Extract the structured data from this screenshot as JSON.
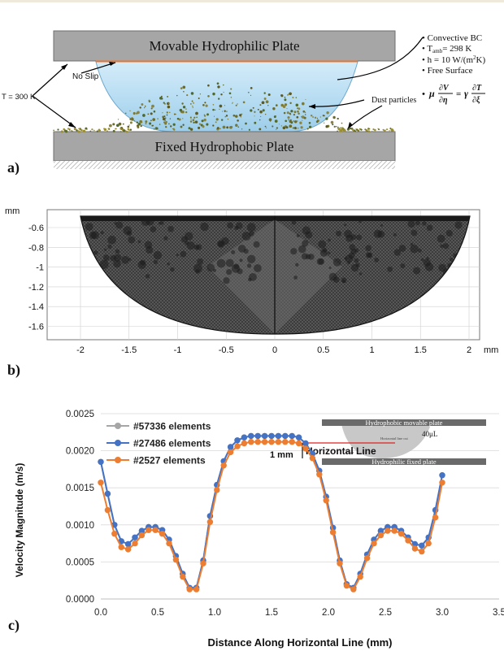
{
  "panel_a": {
    "label": "a)",
    "top_plate": "Movable Hydrophilic Plate",
    "bottom_plate": "Fixed Hydrophobic Plate",
    "no_slip": "No Slip",
    "temperature": "T = 300 K",
    "dust": "Dust particles",
    "bc": {
      "line1": "Convective BC",
      "line2_base": "T",
      "line2_sub": "amb",
      "line2_rest": "= 298 K",
      "line3_a": "h = 10 W/(m",
      "line3_sup": "2",
      "line3_b": "K)",
      "line4": "Free Surface",
      "eq": {
        "mu": "μ",
        "dv": "∂V",
        "deta": "∂η",
        "eq": "=",
        "gamma": "γ",
        "dT": "∂T",
        "dxi": "∂ξ"
      }
    }
  },
  "panel_b": {
    "label": "b)",
    "unit_y": "mm",
    "unit_x": "mm",
    "y_ticks": [
      "-0.6",
      "-0.8",
      "-1",
      "-1.2",
      "-1.4",
      "-1.6"
    ],
    "x_ticks": [
      "-2",
      "-1.5",
      "-1",
      "-0.5",
      "0",
      "0.5",
      "1",
      "1.5",
      "2"
    ]
  },
  "panel_c": {
    "label": "c)",
    "inset": {
      "top": "Hydrophobic movable plate",
      "bottom": "Hydrophilic fixed plate",
      "volume": "40μL",
      "cut": "Horizontal line cut",
      "onemm": "1 mm"
    },
    "annot_1mm": "1 mm",
    "annot_line": "Horizontal Line"
  },
  "chart_data": {
    "type": "line",
    "xlabel": "Distance Along Horizontal Line (mm)",
    "ylabel": "Velocity Magnitude (m/s)",
    "xlim": [
      0,
      3.5
    ],
    "ylim": [
      0,
      0.0025
    ],
    "x_ticks": [
      "0.0",
      "0.5",
      "1.0",
      "1.5",
      "2.0",
      "2.5",
      "3.0",
      "3.5"
    ],
    "y_ticks": [
      "0.0000",
      "0.0005",
      "0.0010",
      "0.0015",
      "0.0020",
      "0.0025"
    ],
    "legend_position": "top-left",
    "x": [
      0.0,
      0.06,
      0.12,
      0.18,
      0.24,
      0.3,
      0.36,
      0.42,
      0.48,
      0.54,
      0.6,
      0.66,
      0.72,
      0.78,
      0.84,
      0.9,
      0.96,
      1.02,
      1.08,
      1.14,
      1.2,
      1.26,
      1.32,
      1.38,
      1.44,
      1.5,
      1.56,
      1.62,
      1.68,
      1.74,
      1.8,
      1.86,
      1.92,
      1.98,
      2.04,
      2.1,
      2.16,
      2.22,
      2.28,
      2.34,
      2.4,
      2.46,
      2.52,
      2.58,
      2.64,
      2.7,
      2.76,
      2.82,
      2.88,
      2.94,
      3.0
    ],
    "series": [
      {
        "name": "#57336 elements",
        "color": "#a6a6a6",
        "values": [
          0.00185,
          0.00142,
          0.001,
          0.00078,
          0.00074,
          0.00083,
          0.00092,
          0.00097,
          0.00097,
          0.00093,
          0.0008,
          0.00058,
          0.00034,
          0.00015,
          0.00015,
          0.00052,
          0.00112,
          0.00154,
          0.00186,
          0.00205,
          0.00214,
          0.00218,
          0.0022,
          0.0022,
          0.0022,
          0.0022,
          0.0022,
          0.0022,
          0.0022,
          0.00218,
          0.0021,
          0.00196,
          0.00173,
          0.00138,
          0.00096,
          0.00052,
          0.0002,
          0.00015,
          0.00034,
          0.0006,
          0.0008,
          0.00092,
          0.00097,
          0.00097,
          0.00092,
          0.00083,
          0.00074,
          0.00072,
          0.00083,
          0.0012,
          0.00167
        ]
      },
      {
        "name": "#27486 elements",
        "color": "#4472c4",
        "values": [
          0.00185,
          0.00142,
          0.001,
          0.00078,
          0.00074,
          0.00083,
          0.00092,
          0.00097,
          0.00097,
          0.00093,
          0.0008,
          0.00058,
          0.00034,
          0.00015,
          0.00015,
          0.00052,
          0.00112,
          0.00154,
          0.00186,
          0.00205,
          0.00214,
          0.00218,
          0.0022,
          0.0022,
          0.0022,
          0.0022,
          0.0022,
          0.0022,
          0.0022,
          0.00218,
          0.0021,
          0.00196,
          0.00173,
          0.00138,
          0.00096,
          0.00052,
          0.0002,
          0.00015,
          0.00034,
          0.0006,
          0.0008,
          0.00092,
          0.00097,
          0.00097,
          0.00092,
          0.00083,
          0.00074,
          0.00072,
          0.00083,
          0.0012,
          0.00167
        ]
      },
      {
        "name": "#2527 elements",
        "color": "#ed7d31",
        "values": [
          0.00157,
          0.0012,
          0.00088,
          0.0007,
          0.00067,
          0.00075,
          0.00086,
          0.00093,
          0.00093,
          0.00088,
          0.00075,
          0.00053,
          0.0003,
          0.00013,
          0.00013,
          0.00048,
          0.00104,
          0.00147,
          0.0018,
          0.00198,
          0.00206,
          0.0021,
          0.00212,
          0.00212,
          0.00212,
          0.00212,
          0.00212,
          0.00212,
          0.00212,
          0.0021,
          0.00203,
          0.0019,
          0.00168,
          0.00133,
          0.0009,
          0.00048,
          0.00018,
          0.00013,
          0.0003,
          0.00055,
          0.00075,
          0.00086,
          0.00092,
          0.00092,
          0.00088,
          0.00079,
          0.00068,
          0.00064,
          0.00075,
          0.0011,
          0.00157
        ]
      }
    ]
  }
}
